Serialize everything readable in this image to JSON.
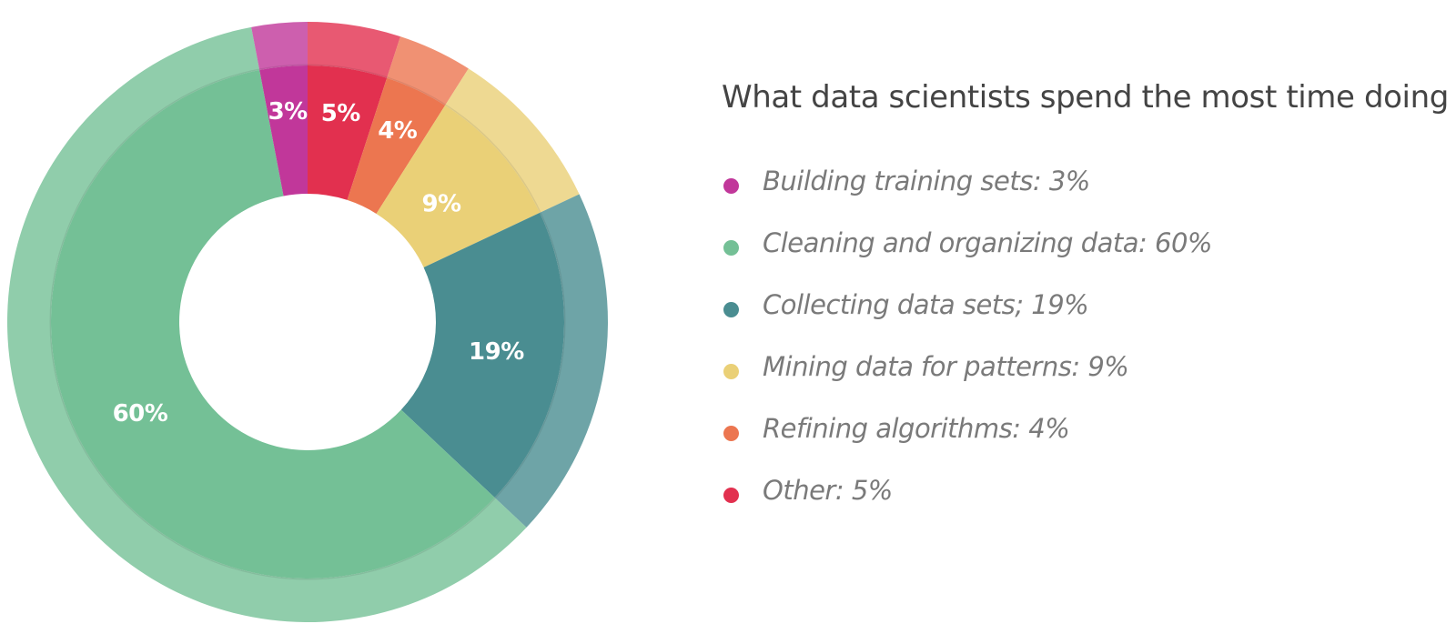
{
  "chart_data": {
    "type": "pie",
    "title": "What data scientists spend the most time doing",
    "slices": [
      {
        "label": "Building training sets: 3%",
        "value": 3,
        "value_label": "3%",
        "color": "#c1379a"
      },
      {
        "label": "Cleaning and organizing data: 60%",
        "value": 60,
        "value_label": "60%",
        "color": "#74c096"
      },
      {
        "label": "Collecting data sets; 19%",
        "value": 19,
        "value_label": "19%",
        "color": "#4a8d91"
      },
      {
        "label": "Mining data for patterns: 9%",
        "value": 9,
        "value_label": "9%",
        "color": "#ead077"
      },
      {
        "label": "Refining algorithms: 4%",
        "value": 4,
        "value_label": "4%",
        "color": "#ec7650"
      },
      {
        "label": "Other: 5%",
        "value": 5,
        "value_label": "5%",
        "color": "#e2304f"
      }
    ],
    "slice_order_clockwise_from_top": [
      "Other: 5%",
      "Refining algorithms: 4%",
      "Mining data for patterns: 9%",
      "Collecting data sets; 19%",
      "Cleaning and organizing data: 60%",
      "Building training sets: 3%"
    ],
    "legend_position": "right"
  }
}
